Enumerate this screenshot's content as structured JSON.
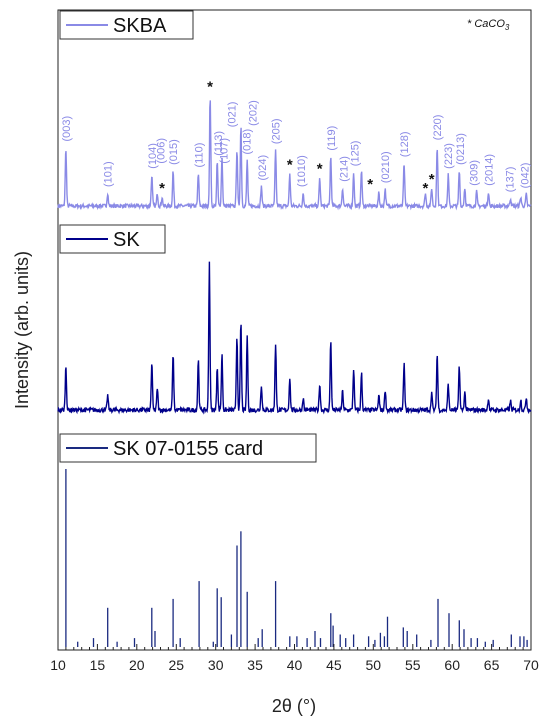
{
  "chart_data": {
    "type": "line",
    "xlabel": "2θ (°)",
    "ylabel": "Intensity (arb. units)",
    "xlim": [
      10,
      70
    ],
    "x_ticks": [
      10,
      15,
      20,
      25,
      30,
      35,
      40,
      45,
      50,
      55,
      60,
      65,
      70
    ],
    "annotation_note": "* CaCO",
    "annotation_note_sub": "3",
    "colors": {
      "skba": "#8a8ae6",
      "sk": "#00008b",
      "card": "#1a2a80",
      "star": "#111111"
    },
    "series": [
      {
        "name": "SKBA",
        "peaks": [
          {
            "x": 11.0,
            "h": 0.45
          },
          {
            "x": 16.3,
            "h": 0.1
          },
          {
            "x": 21.9,
            "h": 0.24
          },
          {
            "x": 22.6,
            "h": 0.1
          },
          {
            "x": 23.2,
            "h": 0.07
          },
          {
            "x": 24.6,
            "h": 0.27
          },
          {
            "x": 27.8,
            "h": 0.25
          },
          {
            "x": 29.3,
            "h": 0.85
          },
          {
            "x": 30.2,
            "h": 0.34
          },
          {
            "x": 30.8,
            "h": 0.38
          },
          {
            "x": 32.7,
            "h": 0.44
          },
          {
            "x": 33.2,
            "h": 0.62
          },
          {
            "x": 34.0,
            "h": 0.35
          },
          {
            "x": 35.8,
            "h": 0.15
          },
          {
            "x": 37.6,
            "h": 0.43
          },
          {
            "x": 39.4,
            "h": 0.25
          },
          {
            "x": 41.1,
            "h": 0.1
          },
          {
            "x": 43.2,
            "h": 0.22
          },
          {
            "x": 44.6,
            "h": 0.38
          },
          {
            "x": 46.1,
            "h": 0.14
          },
          {
            "x": 47.5,
            "h": 0.26
          },
          {
            "x": 48.5,
            "h": 0.28
          },
          {
            "x": 50.7,
            "h": 0.1
          },
          {
            "x": 51.5,
            "h": 0.13
          },
          {
            "x": 53.9,
            "h": 0.33
          },
          {
            "x": 56.6,
            "h": 0.1
          },
          {
            "x": 57.4,
            "h": 0.14
          },
          {
            "x": 58.1,
            "h": 0.46
          },
          {
            "x": 59.5,
            "h": 0.24
          },
          {
            "x": 60.9,
            "h": 0.27
          },
          {
            "x": 61.6,
            "h": 0.14
          },
          {
            "x": 63.1,
            "h": 0.11
          },
          {
            "x": 64.6,
            "h": 0.11
          },
          {
            "x": 67.4,
            "h": 0.06
          },
          {
            "x": 68.7,
            "h": 0.07
          },
          {
            "x": 69.4,
            "h": 0.09
          }
        ]
      },
      {
        "name": "SK",
        "peaks": [
          {
            "x": 11.0,
            "h": 0.3
          },
          {
            "x": 16.3,
            "h": 0.1
          },
          {
            "x": 21.9,
            "h": 0.32
          },
          {
            "x": 22.6,
            "h": 0.15
          },
          {
            "x": 24.6,
            "h": 0.38
          },
          {
            "x": 27.8,
            "h": 0.34
          },
          {
            "x": 29.2,
            "h": 1.0
          },
          {
            "x": 30.2,
            "h": 0.3
          },
          {
            "x": 30.8,
            "h": 0.38
          },
          {
            "x": 32.7,
            "h": 0.5
          },
          {
            "x": 33.2,
            "h": 0.6
          },
          {
            "x": 34.0,
            "h": 0.5
          },
          {
            "x": 35.8,
            "h": 0.17
          },
          {
            "x": 37.6,
            "h": 0.45
          },
          {
            "x": 39.4,
            "h": 0.22
          },
          {
            "x": 41.1,
            "h": 0.08
          },
          {
            "x": 43.2,
            "h": 0.18
          },
          {
            "x": 44.6,
            "h": 0.47
          },
          {
            "x": 46.1,
            "h": 0.13
          },
          {
            "x": 47.5,
            "h": 0.28
          },
          {
            "x": 48.5,
            "h": 0.25
          },
          {
            "x": 50.7,
            "h": 0.1
          },
          {
            "x": 51.5,
            "h": 0.14
          },
          {
            "x": 53.9,
            "h": 0.32
          },
          {
            "x": 57.4,
            "h": 0.12
          },
          {
            "x": 58.1,
            "h": 0.38
          },
          {
            "x": 59.5,
            "h": 0.18
          },
          {
            "x": 60.9,
            "h": 0.3
          },
          {
            "x": 61.6,
            "h": 0.12
          },
          {
            "x": 64.6,
            "h": 0.08
          },
          {
            "x": 67.4,
            "h": 0.06
          },
          {
            "x": 68.7,
            "h": 0.07
          },
          {
            "x": 69.4,
            "h": 0.09
          }
        ]
      },
      {
        "name": "SK 07-0155 card",
        "type": "stick",
        "sticks": [
          {
            "x": 11.0,
            "h": 1.0
          },
          {
            "x": 12.5,
            "h": 0.03
          },
          {
            "x": 14.5,
            "h": 0.05
          },
          {
            "x": 16.3,
            "h": 0.22
          },
          {
            "x": 17.5,
            "h": 0.03
          },
          {
            "x": 19.7,
            "h": 0.05
          },
          {
            "x": 21.9,
            "h": 0.22
          },
          {
            "x": 22.3,
            "h": 0.09
          },
          {
            "x": 24.6,
            "h": 0.27
          },
          {
            "x": 25.5,
            "h": 0.05
          },
          {
            "x": 27.9,
            "h": 0.37
          },
          {
            "x": 29.7,
            "h": 0.03
          },
          {
            "x": 30.2,
            "h": 0.33
          },
          {
            "x": 30.7,
            "h": 0.28
          },
          {
            "x": 32.0,
            "h": 0.07
          },
          {
            "x": 32.7,
            "h": 0.57
          },
          {
            "x": 33.2,
            "h": 0.65
          },
          {
            "x": 34.0,
            "h": 0.31
          },
          {
            "x": 35.4,
            "h": 0.05
          },
          {
            "x": 35.9,
            "h": 0.1
          },
          {
            "x": 37.6,
            "h": 0.37
          },
          {
            "x": 39.4,
            "h": 0.06
          },
          {
            "x": 40.3,
            "h": 0.06
          },
          {
            "x": 41.6,
            "h": 0.05
          },
          {
            "x": 42.6,
            "h": 0.09
          },
          {
            "x": 43.3,
            "h": 0.05
          },
          {
            "x": 44.6,
            "h": 0.19
          },
          {
            "x": 44.9,
            "h": 0.12
          },
          {
            "x": 45.8,
            "h": 0.07
          },
          {
            "x": 46.5,
            "h": 0.05
          },
          {
            "x": 47.5,
            "h": 0.07
          },
          {
            "x": 49.4,
            "h": 0.06
          },
          {
            "x": 50.2,
            "h": 0.04
          },
          {
            "x": 50.9,
            "h": 0.08
          },
          {
            "x": 51.4,
            "h": 0.06
          },
          {
            "x": 51.8,
            "h": 0.17
          },
          {
            "x": 53.8,
            "h": 0.11
          },
          {
            "x": 54.3,
            "h": 0.09
          },
          {
            "x": 55.5,
            "h": 0.07
          },
          {
            "x": 57.3,
            "h": 0.04
          },
          {
            "x": 58.2,
            "h": 0.27
          },
          {
            "x": 59.6,
            "h": 0.19
          },
          {
            "x": 60.9,
            "h": 0.15
          },
          {
            "x": 61.5,
            "h": 0.1
          },
          {
            "x": 62.4,
            "h": 0.05
          },
          {
            "x": 63.2,
            "h": 0.05
          },
          {
            "x": 64.2,
            "h": 0.03
          },
          {
            "x": 65.2,
            "h": 0.04
          },
          {
            "x": 67.5,
            "h": 0.07
          },
          {
            "x": 68.6,
            "h": 0.06
          },
          {
            "x": 69.1,
            "h": 0.06
          },
          {
            "x": 69.5,
            "h": 0.04
          }
        ]
      }
    ],
    "hkl_labels": [
      {
        "text": "(003)",
        "x": 11.0,
        "level": 0.45
      },
      {
        "text": "(101)",
        "x": 16.3,
        "level": 0.1
      },
      {
        "text": "(104)",
        "x": 21.9,
        "level": 0.24
      },
      {
        "text": "(006)",
        "x": 23.0,
        "level": 0.28
      },
      {
        "text": "(015)",
        "x": 24.6,
        "level": 0.27
      },
      {
        "text": "(110)",
        "x": 27.8,
        "level": 0.25
      },
      {
        "text": "(113)",
        "x": 30.3,
        "level": 0.34
      },
      {
        "text": "(107)",
        "x": 31.0,
        "level": 0.28
      },
      {
        "text": "(021)",
        "x": 32.0,
        "level": 0.56
      },
      {
        "text": "(018)",
        "x": 33.9,
        "level": 0.35
      },
      {
        "text": "(202)",
        "x": 34.7,
        "level": 0.57
      },
      {
        "text": "(024)",
        "x": 35.9,
        "level": 0.15
      },
      {
        "text": "(205)",
        "x": 37.6,
        "level": 0.43
      },
      {
        "text": "(1010)",
        "x": 40.8,
        "level": 0.1
      },
      {
        "text": "(119)",
        "x": 44.6,
        "level": 0.38
      },
      {
        "text": "(214)",
        "x": 46.2,
        "level": 0.14
      },
      {
        "text": "(125)",
        "x": 47.6,
        "level": 0.26
      },
      {
        "text": "(0210)",
        "x": 51.5,
        "level": 0.13
      },
      {
        "text": "(128)",
        "x": 53.9,
        "level": 0.33
      },
      {
        "text": "(220)",
        "x": 58.1,
        "level": 0.46
      },
      {
        "text": "(223)",
        "x": 59.5,
        "level": 0.24
      },
      {
        "text": "(0213)",
        "x": 61.0,
        "level": 0.27
      },
      {
        "text": "(309)",
        "x": 62.7,
        "level": 0.11
      },
      {
        "text": "(2014)",
        "x": 64.6,
        "level": 0.11
      },
      {
        "text": "(137)",
        "x": 67.3,
        "level": 0.06
      },
      {
        "text": "(042)",
        "x": 69.2,
        "level": 0.09
      }
    ],
    "stars": [
      {
        "x": 23.2,
        "level": 0.07
      },
      {
        "x": 29.3,
        "level": 0.85
      },
      {
        "x": 39.4,
        "level": 0.25
      },
      {
        "x": 43.2,
        "level": 0.22
      },
      {
        "x": 49.6,
        "level": 0.1
      },
      {
        "x": 56.6,
        "level": 0.07
      },
      {
        "x": 57.4,
        "level": 0.14
      }
    ],
    "star_symbol": "*"
  }
}
